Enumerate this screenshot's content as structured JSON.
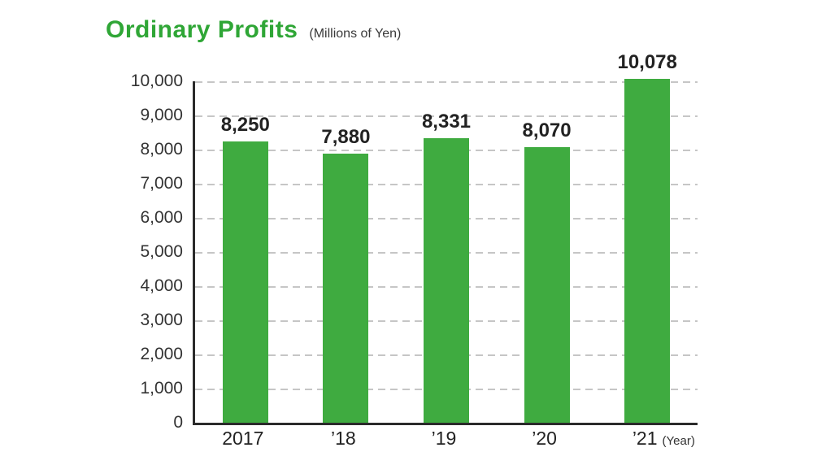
{
  "colors": {
    "title": "#2fa636",
    "bar": "#3fab40",
    "grid": "#c6c6c6",
    "axis": "#2b2b2b",
    "text": "#222222"
  },
  "chart_data": {
    "type": "bar",
    "title": "Ordinary Profits",
    "subtitle": "(Millions of Yen)",
    "categories": [
      "2017",
      "’18",
      "’19",
      "’20",
      "’21"
    ],
    "values": [
      8250,
      7880,
      8331,
      8070,
      10078
    ],
    "value_labels": [
      "8,250",
      "7,880",
      "8,331",
      "8,070",
      "10,078"
    ],
    "xlabel_suffix": "(Year)",
    "xlabel": "Year",
    "ylabel": "Millions of Yen",
    "ylim": [
      0,
      10000
    ],
    "ytick_step": 1000,
    "ytick_labels": [
      "0",
      "1,000",
      "2,000",
      "3,000",
      "4,000",
      "5,000",
      "6,000",
      "7,000",
      "8,000",
      "9,000",
      "10,000"
    ],
    "grid": "dashed-horizontal",
    "legend": "none"
  }
}
